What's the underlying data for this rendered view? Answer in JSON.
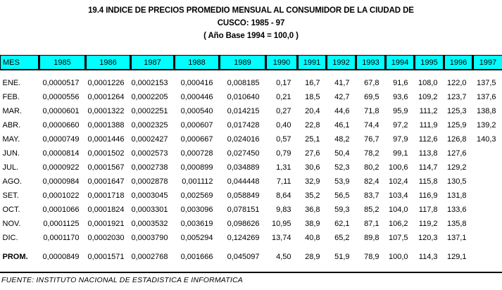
{
  "title": {
    "line1": "19.4 INDICE DE PRECIOS PROMEDIO MENSUAL AL CONSUMIDOR DE LA CIUDAD DE",
    "line2": "CUSCO: 1985 - 97",
    "line3": "( Año Base 1994 = 100,0 )"
  },
  "table": {
    "columns": [
      "MES",
      "1985",
      "1986",
      "1987",
      "1988",
      "1989",
      "1990",
      "1991",
      "1992",
      "1993",
      "1994",
      "1995",
      "1996",
      "1997"
    ],
    "rows": [
      {
        "label": "ENE.",
        "bold": false,
        "values": [
          "0,0000517",
          "0,0001226",
          "0,0002153",
          "0,000416",
          "0,008185",
          "0,17",
          "16,7",
          "41,7",
          "67,8",
          "91,6",
          "108,0",
          "122,0",
          "137,5"
        ]
      },
      {
        "label": "FEB.",
        "bold": false,
        "values": [
          "0,0000556",
          "0,0001264",
          "0,0002205",
          "0,000446",
          "0,010640",
          "0,21",
          "18,5",
          "42,7",
          "69,5",
          "93,6",
          "109,2",
          "123,7",
          "137,6"
        ]
      },
      {
        "label": "MAR.",
        "bold": false,
        "values": [
          "0,0000601",
          "0,0001322",
          "0,0002251",
          "0,000540",
          "0,014215",
          "0,27",
          "20,4",
          "44,6",
          "71,8",
          "95,9",
          "111,2",
          "125,3",
          "138,8"
        ]
      },
      {
        "label": "ABR.",
        "bold": false,
        "values": [
          "0,0000660",
          "0,0001388",
          "0,0002325",
          "0,000607",
          "0,017428",
          "0,40",
          "22,8",
          "46,1",
          "74,4",
          "97,2",
          "111,9",
          "125,9",
          "139,2"
        ]
      },
      {
        "label": "MAY.",
        "bold": false,
        "values": [
          "0,0000749",
          "0,0001446",
          "0,0002427",
          "0,000667",
          "0,024016",
          "0,57",
          "25,1",
          "48,2",
          "76,7",
          "97,9",
          "112,6",
          "126,8",
          "140,3"
        ]
      },
      {
        "label": "JUN.",
        "bold": false,
        "values": [
          "0,0000814",
          "0,0001502",
          "0,0002573",
          "0,000728",
          "0,027450",
          "0,79",
          "27,6",
          "50,4",
          "78,2",
          "99,1",
          "113,8",
          "127,6",
          ""
        ]
      },
      {
        "label": "JUL.",
        "bold": false,
        "values": [
          "0,0000922",
          "0,0001567",
          "0,0002738",
          "0,000899",
          "0,034889",
          "1,31",
          "30,6",
          "52,3",
          "80,2",
          "100,6",
          "114,7",
          "129,2",
          ""
        ]
      },
      {
        "label": "AGO.",
        "bold": false,
        "values": [
          "0,0000984",
          "0,0001647",
          "0,0002878",
          "0,001112",
          "0,044448",
          "7,11",
          "32,9",
          "53,9",
          "82,4",
          "102,4",
          "115,8",
          "130,5",
          ""
        ]
      },
      {
        "label": "SET.",
        "bold": false,
        "values": [
          "0,0001022",
          "0,0001718",
          "0,0003045",
          "0,002569",
          "0,058849",
          "8,64",
          "35,2",
          "56,5",
          "83,7",
          "103,4",
          "116,9",
          "131,8",
          ""
        ]
      },
      {
        "label": "OCT.",
        "bold": false,
        "values": [
          "0,0001066",
          "0,0001824",
          "0,0003301",
          "0,003096",
          "0,078151",
          "9,83",
          "36,8",
          "59,3",
          "85,2",
          "104,0",
          "117,8",
          "133,6",
          ""
        ]
      },
      {
        "label": "NOV.",
        "bold": false,
        "values": [
          "0,0001125",
          "0,0001921",
          "0,0003532",
          "0,003619",
          "0,098626",
          "10,95",
          "38,9",
          "62,1",
          "87,1",
          "106,2",
          "119,2",
          "135,8",
          ""
        ]
      },
      {
        "label": "DIC.",
        "bold": false,
        "values": [
          "0,0001170",
          "0,0002030",
          "0,0003790",
          "0,005294",
          "0,124269",
          "13,74",
          "40,8",
          "65,2",
          "89,8",
          "107,5",
          "120,3",
          "137,1",
          ""
        ]
      },
      {
        "label": "PROM.",
        "bold": true,
        "values": [
          "0,0000849",
          "0,0001571",
          "0,0002768",
          "0,001666",
          "0,045097",
          "4,50",
          "28,9",
          "51,9",
          "78,9",
          "100,0",
          "114,3",
          "129,1",
          ""
        ]
      }
    ]
  },
  "footer": {
    "source": "FUENTE: INSTITUTO NACIONAL DE ESTADISTICA E INFORMATICA"
  },
  "colors": {
    "header_bg": "#00FFFF",
    "border": "#000000",
    "text": "#000000"
  }
}
